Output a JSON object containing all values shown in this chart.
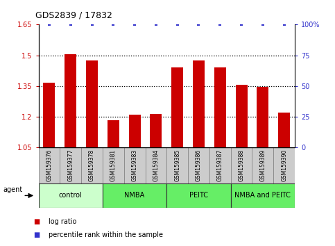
{
  "title": "GDS2839 / 17832",
  "samples": [
    "GSM159376",
    "GSM159377",
    "GSM159378",
    "GSM159381",
    "GSM159383",
    "GSM159384",
    "GSM159385",
    "GSM159386",
    "GSM159387",
    "GSM159388",
    "GSM159389",
    "GSM159390"
  ],
  "log_ratios": [
    1.365,
    1.505,
    1.475,
    1.185,
    1.21,
    1.215,
    1.44,
    1.475,
    1.44,
    1.355,
    1.345,
    1.22
  ],
  "percentile_ranks": [
    100,
    100,
    100,
    100,
    100,
    100,
    100,
    100,
    100,
    100,
    100,
    100
  ],
  "bar_baseline": 1.05,
  "ylim": [
    1.05,
    1.65
  ],
  "right_ylim": [
    0,
    100
  ],
  "right_yticks": [
    0,
    25,
    50,
    75,
    100
  ],
  "right_yticklabels": [
    "0",
    "25",
    "50",
    "75",
    "100%"
  ],
  "left_yticks": [
    1.05,
    1.2,
    1.35,
    1.5,
    1.65
  ],
  "left_yticklabels": [
    "1.05",
    "1.2",
    "1.35",
    "1.5",
    "1.65"
  ],
  "dotted_lines": [
    1.2,
    1.35,
    1.5
  ],
  "bar_color": "#cc0000",
  "dot_color": "#3333cc",
  "groups": [
    {
      "label": "control",
      "start": 0,
      "end": 3,
      "color": "#ccffcc"
    },
    {
      "label": "NMBA",
      "start": 3,
      "end": 6,
      "color": "#66ee66"
    },
    {
      "label": "PEITC",
      "start": 6,
      "end": 9,
      "color": "#66ee66"
    },
    {
      "label": "NMBA and PEITC",
      "start": 9,
      "end": 12,
      "color": "#66ee66"
    }
  ],
  "agent_label": "agent",
  "legend_items": [
    {
      "color": "#cc0000",
      "label": "log ratio"
    },
    {
      "color": "#3333cc",
      "label": "percentile rank within the sample"
    }
  ],
  "tick_label_color_left": "#cc0000",
  "tick_label_color_right": "#3333cc",
  "sample_box_color": "#cccccc",
  "sample_box_edge": "#888888",
  "bar_width": 0.55
}
